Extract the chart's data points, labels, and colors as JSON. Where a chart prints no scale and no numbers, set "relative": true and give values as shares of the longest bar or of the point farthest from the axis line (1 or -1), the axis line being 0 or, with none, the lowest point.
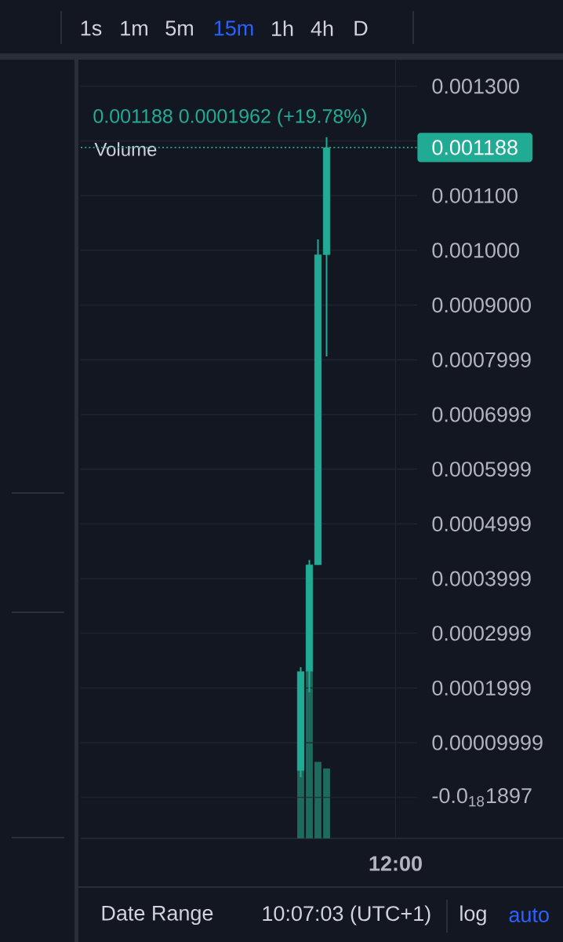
{
  "chart_data": [
    {
      "type": "candlestick",
      "subtitle": "0.001188 0.0001962 (+19.78%)",
      "annotations": [
        "1s",
        "1m",
        "5m",
        "15m",
        "1h",
        "4h",
        "D",
        "Date Range",
        "10:07:03 (UTC+1)",
        "log",
        "auto"
      ],
      "categories": [
        null,
        null,
        null,
        null,
        null,
        null,
        null,
        null,
        null,
        null,
        null,
        null,
        null,
        null,
        null,
        null,
        null,
        null,
        null,
        null,
        null,
        null,
        null,
        null,
        null,
        null,
        null,
        null,
        null,
        null,
        null,
        null,
        null,
        null,
        null,
        null,
        "12:00",
        null,
        null
      ],
      "ohlc": [
        null,
        null,
        null,
        null,
        null,
        null,
        null,
        null,
        null,
        null,
        null,
        null,
        null,
        null,
        null,
        null,
        null,
        null,
        null,
        null,
        null,
        null,
        null,
        null,
        null,
        [
          4.9e-05,
          0.000238,
          3.7e-05,
          0.00023
        ],
        [
          0.00023,
          0.000434,
          0.000192,
          0.000425
        ],
        [
          0.000425,
          0.00102,
          0.000425,
          0.0009918
        ],
        [
          0.0009918,
          0.001207,
          0.000806,
          0.001188
        ],
        null,
        null,
        null,
        null,
        null,
        null,
        null,
        null,
        null,
        null
      ],
      "color": "#22ab94",
      "ylim": [
        -7.5e-05,
        0.00135
      ],
      "yticks": [
        {
          "value": 0.0013,
          "label": "0.001300"
        },
        {
          "value": 0.0012,
          "label": null
        },
        {
          "value": 0.0011,
          "label": "0.001100"
        },
        {
          "value": 0.001,
          "label": "0.001000"
        },
        {
          "value": 0.0009,
          "label": "0.0009000"
        },
        {
          "value": 0.0007999,
          "label": "0.0007999"
        },
        {
          "value": 0.0006999,
          "label": "0.0006999"
        },
        {
          "value": 0.0005999,
          "label": "0.0005999"
        },
        {
          "value": 0.0004999,
          "label": "0.0004999"
        },
        {
          "value": 0.0003999,
          "label": "0.0003999"
        },
        {
          "value": 0.0002999,
          "label": "0.0002999"
        },
        {
          "value": 0.0001999,
          "label": "0.0001999"
        },
        {
          "value": 9.999e-05,
          "label": "0.00009999"
        },
        {
          "value": -1.897e-19,
          "label": "-0.0$_{18}$1897"
        }
      ],
      "grid": true,
      "ref_lines": [
        {
          "axis": "y",
          "value": 0.001188,
          "label": "0.001188",
          "color": "#22ab94",
          "line_style": "dotted"
        }
      ]
    },
    {
      "type": "bar",
      "title": "Volume",
      "categories": [
        null,
        null,
        null,
        null,
        null,
        null,
        null,
        null,
        null,
        null,
        null,
        null,
        null,
        null,
        null,
        null,
        null,
        null,
        null,
        null,
        null,
        null,
        null,
        null,
        null,
        null,
        null,
        null,
        null,
        null,
        null,
        null,
        null,
        null,
        null,
        null,
        null,
        null,
        null
      ],
      "values": [
        null,
        null,
        null,
        null,
        null,
        null,
        null,
        null,
        null,
        null,
        null,
        null,
        null,
        null,
        null,
        null,
        null,
        null,
        null,
        null,
        null,
        null,
        null,
        null,
        null,
        0.41,
        1,
        0.46,
        0.42,
        null,
        null,
        null,
        null,
        null,
        null,
        null,
        null,
        null,
        null
      ],
      "relative": true,
      "color": "#1e6b5d"
    }
  ]
}
